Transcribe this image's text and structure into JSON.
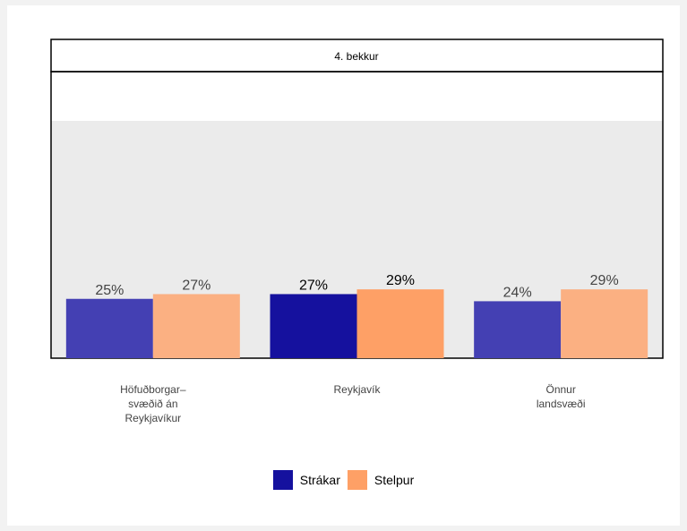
{
  "chart_data": {
    "type": "bar",
    "panel_title": "4. bekkur",
    "categories": [
      "Höfuðborgar–\nsvæðið án\nReykjavíkur",
      "Reykjavík",
      "Önnur\nlandsvæði"
    ],
    "series": [
      {
        "name": "Strákar",
        "values": [
          25,
          27,
          24
        ],
        "labels": [
          "25%",
          "27%",
          "24%"
        ]
      },
      {
        "name": "Stelpur",
        "values": [
          27,
          29,
          29
        ],
        "labels": [
          "27%",
          "29%",
          "29%"
        ]
      }
    ],
    "highlight_category": "Reykjavík",
    "ylim": [
      0,
      100
    ],
    "legend_position": "bottom"
  },
  "colors": {
    "boys": "#4440b3",
    "girls": "#fbb082",
    "boys_highlight": "#15119e",
    "girls_highlight": "#fea066",
    "plot_bg": "#ebebeb"
  }
}
